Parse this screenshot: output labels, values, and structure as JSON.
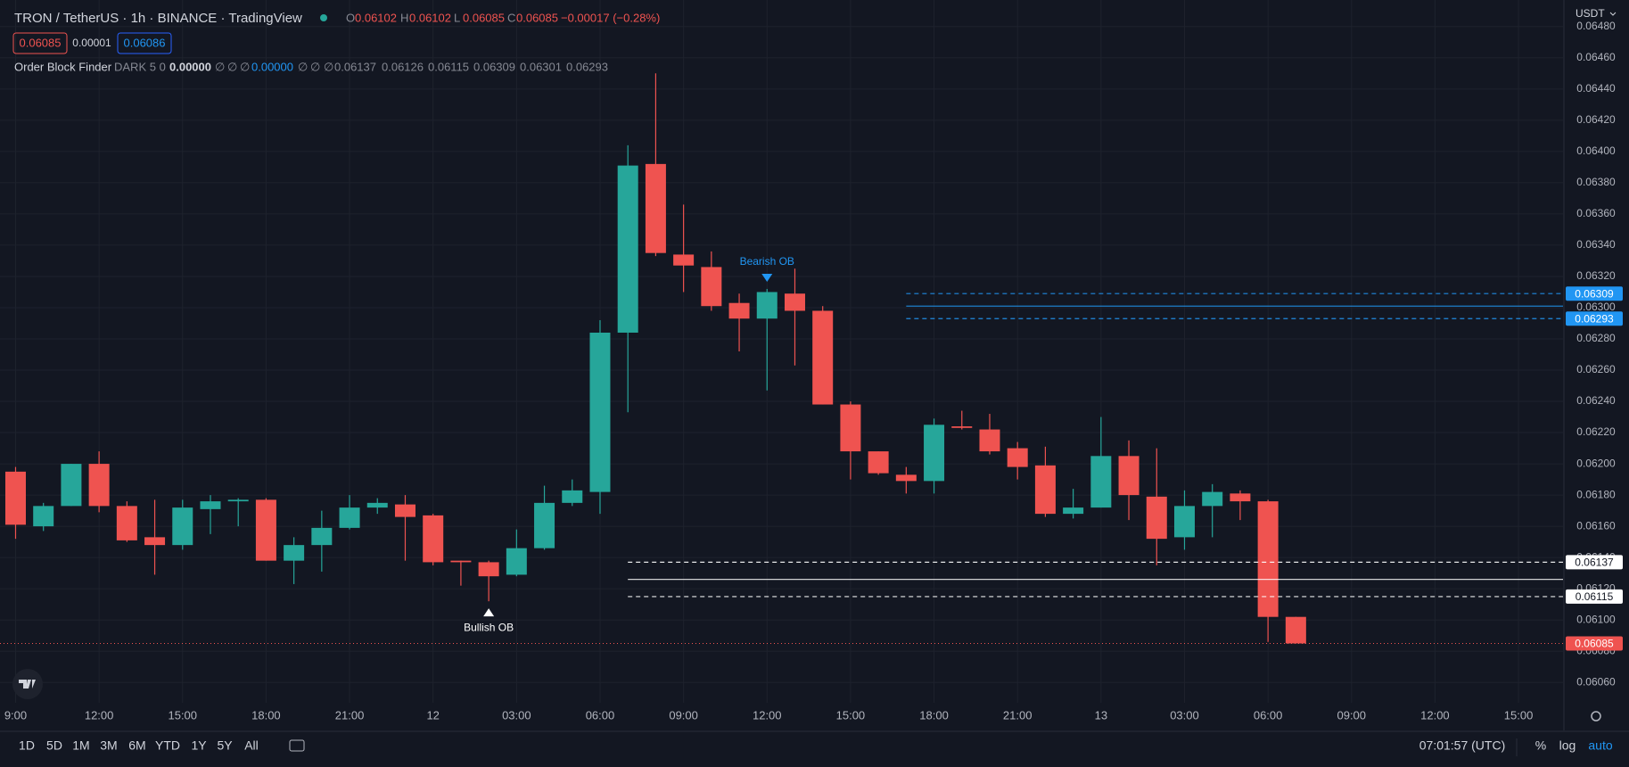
{
  "header": {
    "symbol": "TRON / TetherUS · 1h · BINANCE · TradingView",
    "ohlc": [
      {
        "label": "O",
        "value": "0.06102"
      },
      {
        "label": "H",
        "value": "0.06102"
      },
      {
        "label": "L",
        "value": "0.06085"
      },
      {
        "label": "C",
        "value": "0.06085"
      }
    ],
    "change": "−0.00017 (−0.28%)",
    "price_boxes": [
      "0.06085",
      "0.00001",
      "0.06086"
    ],
    "currency": "USDT"
  },
  "indicator": {
    "name": "Order Block Finder",
    "params": "DARK 5 0",
    "values": [
      "0.00000",
      "∅",
      "∅",
      "∅",
      "0.00000",
      "∅",
      "∅",
      "∅",
      "0.06137",
      "0.06126",
      "0.06115",
      "0.06309",
      "0.06301",
      "0.06293"
    ]
  },
  "toolbar": {
    "ranges": [
      "1D",
      "5D",
      "1M",
      "3M",
      "6M",
      "YTD",
      "1Y",
      "5Y",
      "All"
    ],
    "clock": "07:01:57 (UTC)",
    "options": [
      "%",
      "log",
      "auto"
    ]
  },
  "chart_data": {
    "type": "candlestick",
    "x": [
      0,
      1,
      2,
      3,
      4,
      5,
      6,
      7,
      8,
      9,
      10,
      11,
      12,
      13,
      14,
      15,
      16,
      17,
      18,
      19,
      20,
      21,
      22,
      23,
      24,
      25,
      26,
      27,
      28,
      29,
      30,
      31,
      32,
      33,
      34,
      35,
      36,
      37,
      38,
      39,
      40,
      41,
      42,
      43,
      44,
      45,
      46
    ],
    "open": [
      0.06195,
      0.0616,
      0.06173,
      0.062,
      0.06173,
      0.06153,
      0.06148,
      0.06171,
      0.06176,
      0.06177,
      0.06138,
      0.06148,
      0.06159,
      0.06172,
      0.06174,
      0.06167,
      0.06138,
      0.06137,
      0.06129,
      0.06146,
      0.06175,
      0.06182,
      0.06284,
      0.06392,
      0.06334,
      0.06326,
      0.06303,
      0.06293,
      0.06309,
      0.06298,
      0.06238,
      0.06208,
      0.06193,
      0.06189,
      0.06224,
      0.06222,
      0.0621,
      0.06199,
      0.06168,
      0.06172,
      0.06205,
      0.06179,
      0.06153,
      0.06173,
      0.06181,
      0.06176,
      0.06102
    ],
    "high": [
      0.06198,
      0.06175,
      0.062,
      0.06208,
      0.06176,
      0.06177,
      0.06177,
      0.0618,
      0.06178,
      0.06178,
      0.06153,
      0.0617,
      0.0618,
      0.06178,
      0.0618,
      0.06168,
      0.06138,
      0.06138,
      0.06158,
      0.06186,
      0.0619,
      0.06292,
      0.06404,
      0.0645,
      0.06366,
      0.06336,
      0.06309,
      0.06312,
      0.06325,
      0.06301,
      0.0624,
      0.06208,
      0.06198,
      0.06229,
      0.06234,
      0.06232,
      0.06214,
      0.06211,
      0.06184,
      0.0623,
      0.06215,
      0.0621,
      0.06183,
      0.06187,
      0.06183,
      0.06177,
      0.06102
    ],
    "low": [
      0.06152,
      0.06157,
      0.06173,
      0.06169,
      0.0615,
      0.06129,
      0.06145,
      0.06155,
      0.0616,
      0.06138,
      0.06123,
      0.06131,
      0.06158,
      0.06168,
      0.06138,
      0.06135,
      0.06122,
      0.06112,
      0.06128,
      0.06145,
      0.06173,
      0.06168,
      0.06233,
      0.06333,
      0.0631,
      0.06298,
      0.06272,
      0.06247,
      0.06263,
      0.06238,
      0.0619,
      0.06193,
      0.06181,
      0.06181,
      0.06222,
      0.06206,
      0.0619,
      0.06166,
      0.06165,
      0.06172,
      0.06164,
      0.06135,
      0.06145,
      0.06153,
      0.06164,
      0.06086,
      0.06085
    ],
    "close": [
      0.06161,
      0.06173,
      0.062,
      0.06173,
      0.06151,
      0.06148,
      0.06172,
      0.06176,
      0.06177,
      0.06138,
      0.06148,
      0.06159,
      0.06172,
      0.06175,
      0.06166,
      0.06137,
      0.06137,
      0.06128,
      0.06146,
      0.06175,
      0.06183,
      0.06284,
      0.06391,
      0.06335,
      0.06327,
      0.06301,
      0.06293,
      0.0631,
      0.06298,
      0.06238,
      0.06208,
      0.06194,
      0.06189,
      0.06225,
      0.06223,
      0.06208,
      0.06198,
      0.06168,
      0.06172,
      0.06205,
      0.0618,
      0.06152,
      0.06173,
      0.06182,
      0.06176,
      0.06102,
      0.06085
    ],
    "up_color": "#26a69a",
    "down_color": "#ef5350",
    "xlim": [
      -0.56,
      55.6
    ],
    "xticks": [
      {
        "value": 0,
        "label": "9:00"
      },
      {
        "value": 3,
        "label": "12:00"
      },
      {
        "value": 6,
        "label": "15:00"
      },
      {
        "value": 9,
        "label": "18:00"
      },
      {
        "value": 12,
        "label": "21:00"
      },
      {
        "value": 15,
        "label": "12"
      },
      {
        "value": 18,
        "label": "03:00"
      },
      {
        "value": 21,
        "label": "06:00"
      },
      {
        "value": 24,
        "label": "09:00"
      },
      {
        "value": 27,
        "label": "12:00"
      },
      {
        "value": 30,
        "label": "15:00"
      },
      {
        "value": 33,
        "label": "18:00"
      },
      {
        "value": 36,
        "label": "21:00"
      },
      {
        "value": 39,
        "label": "13"
      },
      {
        "value": 42,
        "label": "03:00"
      },
      {
        "value": 45,
        "label": "06:00"
      },
      {
        "value": 48,
        "label": "09:00"
      },
      {
        "value": 51,
        "label": "12:00"
      },
      {
        "value": 54,
        "label": "15:00"
      }
    ],
    "ylim": [
      0.06047,
      0.06497
    ],
    "yticks": [
      {
        "value": 0.0606,
        "label": "0.06060"
      },
      {
        "value": 0.0608,
        "label": "0.06080"
      },
      {
        "value": 0.061,
        "label": "0.06100"
      },
      {
        "value": 0.0612,
        "label": "0.06120"
      },
      {
        "value": 0.0614,
        "label": "0.06140"
      },
      {
        "value": 0.0616,
        "label": "0.06160"
      },
      {
        "value": 0.0618,
        "label": "0.06180"
      },
      {
        "value": 0.062,
        "label": "0.06200"
      },
      {
        "value": 0.0622,
        "label": "0.06220"
      },
      {
        "value": 0.0624,
        "label": "0.06240"
      },
      {
        "value": 0.0626,
        "label": "0.06260"
      },
      {
        "value": 0.0628,
        "label": "0.06280"
      },
      {
        "value": 0.063,
        "label": "0.06300"
      },
      {
        "value": 0.0632,
        "label": "0.06320"
      },
      {
        "value": 0.0634,
        "label": "0.06340"
      },
      {
        "value": 0.0636,
        "label": "0.06360"
      },
      {
        "value": 0.0638,
        "label": "0.06380"
      },
      {
        "value": 0.064,
        "label": "0.06400"
      },
      {
        "value": 0.0642,
        "label": "0.06420"
      },
      {
        "value": 0.0644,
        "label": "0.06440"
      },
      {
        "value": 0.0646,
        "label": "0.06460"
      },
      {
        "value": 0.0648,
        "label": "0.06480"
      }
    ],
    "grid": true,
    "order_blocks": [
      {
        "from": 22,
        "top": 0.06137,
        "mid": 0.06126,
        "bottom": 0.06115,
        "color": "#ffffff"
      },
      {
        "from": 32,
        "top": 0.06309,
        "mid": 0.06301,
        "bottom": 0.06293,
        "color": "#2196f3"
      }
    ],
    "annotations": [
      {
        "text": "Bullish OB",
        "x": 17,
        "position": "below",
        "color": "#ffffff"
      },
      {
        "text": "Bearish OB",
        "x": 27,
        "position": "above",
        "color": "#2196f3"
      }
    ]
  }
}
